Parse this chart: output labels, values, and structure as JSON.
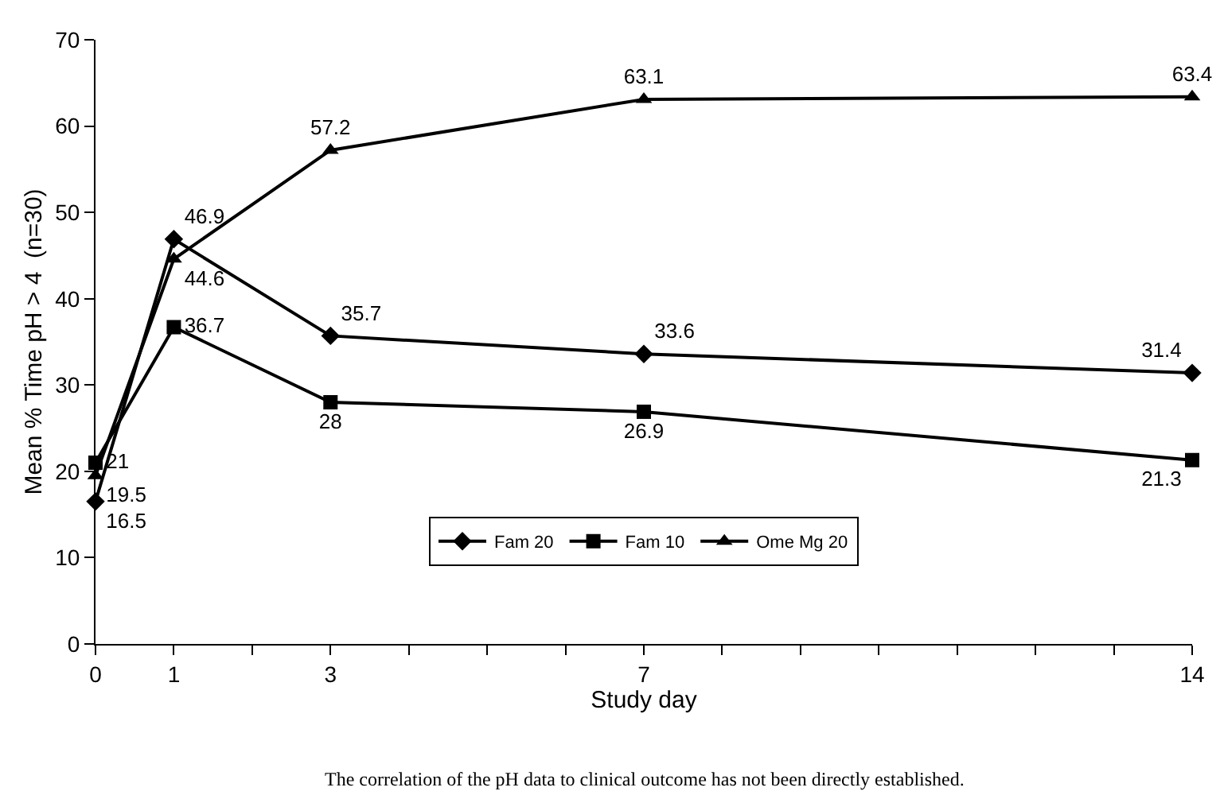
{
  "chart_data": {
    "type": "line",
    "xlabel": "Study day",
    "ylabel": "Mean % Time pH > 4  (n=30)",
    "x": [
      0,
      1,
      3,
      7,
      14
    ],
    "series": [
      {
        "name": "Fam 20",
        "color": "#000000",
        "marker": "diamond",
        "values": [
          16.5,
          46.9,
          35.7,
          33.6,
          31.4
        ]
      },
      {
        "name": "Fam 10",
        "color": "#000000",
        "marker": "square",
        "values": [
          21,
          36.7,
          28,
          26.9,
          21.3
        ]
      },
      {
        "name": "Ome Mg 20",
        "color": "#000000",
        "marker": "triangle",
        "values": [
          19.5,
          44.6,
          57.2,
          63.1,
          63.4
        ]
      }
    ],
    "xlim": [
      0,
      14
    ],
    "ylim": [
      0,
      70
    ],
    "xticks": [
      0,
      1,
      {
        "value": 2,
        "label": null
      },
      3,
      {
        "value": 4,
        "label": null
      },
      {
        "value": 5,
        "label": null
      },
      {
        "value": 6,
        "label": null
      },
      7,
      {
        "value": 8,
        "label": null
      },
      {
        "value": 9,
        "label": null
      },
      {
        "value": 10,
        "label": null
      },
      {
        "value": 11,
        "label": null
      },
      {
        "value": 12,
        "label": null
      },
      {
        "value": 13,
        "label": null
      },
      14
    ],
    "yticks": [
      0,
      10,
      20,
      30,
      40,
      50,
      60,
      70
    ],
    "data_labels": true,
    "legend": "bottom",
    "annotations": [
      "The correlation of the pH data to clinical outcome has not been directly established."
    ]
  }
}
